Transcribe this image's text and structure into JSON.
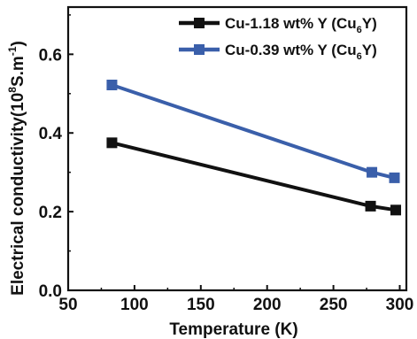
{
  "chart_data": {
    "type": "line",
    "xlabel": "Temperature (K)",
    "ylabel": "Electrical conductivity(10⁸S.m⁻¹)",
    "ylabel_parts": {
      "base": "Electrical conductivity(10",
      "exp1": "8",
      "mid": "S.m",
      "exp2": "-1",
      "end": ")"
    },
    "xlim": [
      50,
      305
    ],
    "ylim": [
      0,
      0.72
    ],
    "xticks": [
      50,
      100,
      150,
      200,
      250,
      300
    ],
    "yticks": [
      0.0,
      0.2,
      0.4,
      0.6
    ],
    "xtick_labels": [
      "50",
      "100",
      "150",
      "200",
      "250",
      "300"
    ],
    "ytick_labels": [
      "0.0",
      "0.2",
      "0.4",
      "0.6"
    ],
    "grid": false,
    "legend_position": "top-right",
    "series": [
      {
        "name": "Cu-1.18 wt% Y (Cu6Y)",
        "legend_parts": {
          "base": "Cu-1.18 wt% Y (Cu",
          "sub": "6",
          "end": "Y)"
        },
        "color": "#111111",
        "marker": "square",
        "x": [
          83,
          278,
          297
        ],
        "y": [
          0.375,
          0.214,
          0.204
        ]
      },
      {
        "name": "Cu-0.39 wt% Y (Cu6Y)",
        "legend_parts": {
          "base": "Cu-0.39 wt% Y (Cu",
          "sub": "6",
          "end": "Y)"
        },
        "color": "#3a5faa",
        "marker": "square",
        "x": [
          83,
          279,
          296
        ],
        "y": [
          0.522,
          0.3,
          0.286
        ]
      }
    ]
  }
}
